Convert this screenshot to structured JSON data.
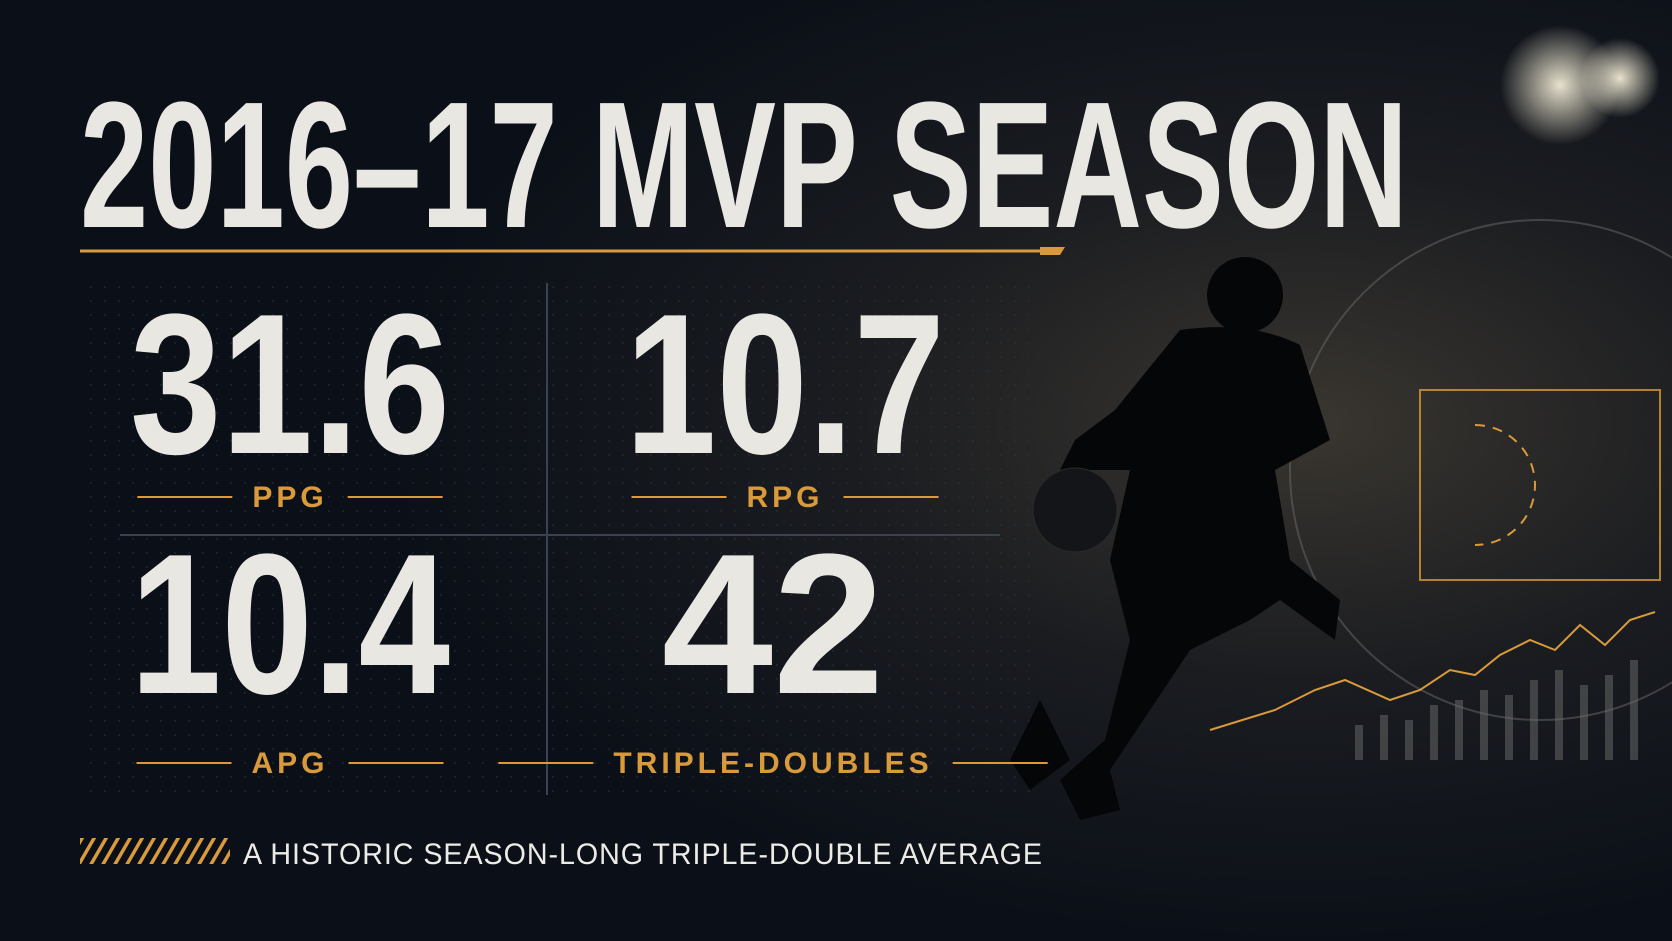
{
  "title": "2016–17 MVP SEASON",
  "stats": [
    {
      "value": 31.6,
      "label": "PPG"
    },
    {
      "value": 10.7,
      "label": "RPG"
    },
    {
      "value": 10.4,
      "label": "APG"
    },
    {
      "value": 42,
      "label": "TRIPLE-DOUBLES"
    }
  ],
  "tagline": "A HISTORIC SEASON-LONG TRIPLE-DOUBLE AVERAGE"
}
